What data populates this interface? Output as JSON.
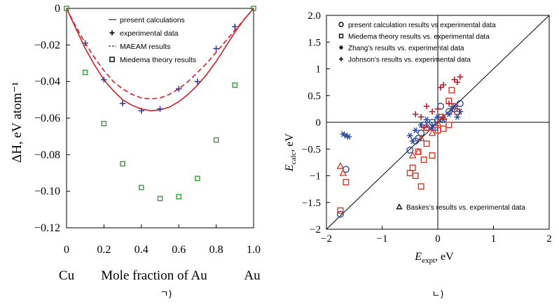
{
  "chart_data": [
    {
      "type": "line",
      "panel_label": "ㄱ)",
      "ylabel": "ΔH, eV atom⁻¹",
      "xlabel_left": "Cu",
      "xlabel_mid": "Mole fraction of Au",
      "xlabel_right": "Au",
      "xlim": [
        0,
        1.0
      ],
      "ylim": [
        -0.12,
        0
      ],
      "xticks": [
        "0",
        "0.2",
        "0.4",
        "0.6",
        "0.8",
        "1.0"
      ],
      "yticks": [
        "0",
        "−0.02",
        "−0.04",
        "−0.06",
        "−0.08",
        "−0.10",
        "−0.12"
      ],
      "legend": [
        "present calculations",
        "experimental data",
        "MAEAM results",
        "Miedema theory results"
      ],
      "series": [
        {
          "name": "present calculations",
          "style": "solid",
          "color": "#d01e28",
          "x": [
            0,
            0.05,
            0.1,
            0.15,
            0.2,
            0.25,
            0.3,
            0.35,
            0.4,
            0.45,
            0.5,
            0.55,
            0.6,
            0.65,
            0.7,
            0.75,
            0.8,
            0.85,
            0.9,
            0.95,
            1.0
          ],
          "y": [
            0,
            -0.011,
            -0.022,
            -0.031,
            -0.039,
            -0.045,
            -0.05,
            -0.053,
            -0.055,
            -0.056,
            -0.0555,
            -0.054,
            -0.051,
            -0.047,
            -0.042,
            -0.036,
            -0.029,
            -0.021,
            -0.013,
            -0.006,
            0
          ]
        },
        {
          "name": "MAEAM results",
          "style": "dashed",
          "color": "#d01e28",
          "x": [
            0,
            0.05,
            0.1,
            0.15,
            0.2,
            0.25,
            0.3,
            0.35,
            0.4,
            0.45,
            0.5,
            0.55,
            0.6,
            0.65,
            0.7,
            0.75,
            0.8,
            0.85,
            0.9,
            0.95,
            1.0
          ],
          "y": [
            0,
            -0.01,
            -0.019,
            -0.027,
            -0.034,
            -0.04,
            -0.044,
            -0.047,
            -0.049,
            -0.0495,
            -0.049,
            -0.047,
            -0.044,
            -0.04,
            -0.035,
            -0.03,
            -0.024,
            -0.018,
            -0.012,
            -0.006,
            0
          ]
        },
        {
          "name": "experimental data",
          "marker": "+",
          "color": "#3a3f98",
          "x": [
            0.1,
            0.2,
            0.3,
            0.4,
            0.5,
            0.6,
            0.7,
            0.8,
            0.9
          ],
          "y": [
            -0.019,
            -0.039,
            -0.052,
            -0.056,
            -0.055,
            -0.044,
            -0.04,
            -0.022,
            -0.01
          ]
        },
        {
          "name": "Miedema theory results",
          "marker": "square",
          "color": "#3a9a3a",
          "x": [
            0,
            0.1,
            0.2,
            0.3,
            0.4,
            0.5,
            0.6,
            0.7,
            0.8,
            0.9,
            1.0
          ],
          "y": [
            0,
            -0.035,
            -0.063,
            -0.085,
            -0.098,
            -0.104,
            -0.103,
            -0.093,
            -0.072,
            -0.042,
            0
          ]
        }
      ]
    },
    {
      "type": "scatter",
      "panel_label": "ㄴ)",
      "xlabel": "E",
      "xlabel_sub": "expt",
      "xlabel_unit": ", eV",
      "ylabel": "E",
      "ylabel_sub": "calc",
      "ylabel_unit": ", eV",
      "xlim": [
        -2,
        2
      ],
      "ylim": [
        -2,
        2
      ],
      "xticks": [
        "−2",
        "−1",
        "0",
        "1",
        "2"
      ],
      "yticks": [
        "2.0",
        "1.5",
        "1",
        "0.5",
        "0",
        "−0.5",
        "−1",
        "−1.5",
        "−2"
      ],
      "legend": [
        "present calculation results vs experimental data",
        "Miedema theory results vs. experimental data",
        "Zhang’s results vs. experimental data",
        "Johnson’s results vs. experimental data"
      ],
      "legend_bottom": "Baskes’s results vs. experimental data",
      "series": [
        {
          "name": "present calculation results",
          "marker": "circle",
          "color": "#2b4a9c",
          "x": [
            -1.75,
            -1.65,
            -0.5,
            -0.4,
            -0.3,
            -0.2,
            -0.15,
            -0.1,
            -0.05,
            0,
            0.05,
            0.1,
            0.2,
            0.3,
            0.4,
            -0.25,
            -0.35
          ],
          "y": [
            -1.72,
            -0.88,
            -0.52,
            -0.35,
            -0.2,
            -0.1,
            -0.05,
            0.0,
            -0.1,
            0.05,
            0.3,
            0.05,
            0.2,
            0.25,
            0.35,
            -0.05,
            -0.3
          ]
        },
        {
          "name": "Miedema theory results",
          "marker": "square",
          "color": "#d8341e",
          "x": [
            -1.75,
            -1.65,
            -0.5,
            -0.45,
            -0.4,
            -0.35,
            -0.3,
            -0.25,
            -0.2,
            -0.1,
            0,
            0.05,
            0.1,
            0.2,
            0.25,
            0.3,
            0.35,
            0.2
          ],
          "y": [
            -1.65,
            -1.12,
            -0.95,
            -0.85,
            -1.0,
            -0.55,
            -1.2,
            -0.7,
            -0.4,
            -0.62,
            -0.15,
            0.1,
            -0.12,
            0.4,
            0.6,
            0.3,
            0.2,
            -0.05
          ]
        },
        {
          "name": "Zhang's results",
          "marker": "asterisk",
          "color": "#2b4a9c",
          "x": [
            -1.7,
            -1.65,
            -1.6,
            -0.5,
            -0.4,
            -0.3,
            -0.2,
            -0.1,
            0,
            0.1,
            0.2,
            0.3,
            0.4,
            -0.45,
            0.25,
            0.35
          ],
          "y": [
            -0.22,
            -0.25,
            -0.27,
            -0.25,
            -0.15,
            -0.05,
            0.05,
            -0.1,
            0.1,
            0.05,
            0.15,
            0.3,
            0.2,
            -0.35,
            0.25,
            0.1
          ]
        },
        {
          "name": "Johnson's results",
          "marker": "+",
          "color": "#c0182a",
          "x": [
            -0.4,
            -0.3,
            -0.2,
            -0.1,
            0,
            0.1,
            0.2,
            0.3,
            0.35,
            0.4,
            -0.25,
            0.05
          ],
          "y": [
            0.15,
            0.1,
            0.3,
            0.2,
            0.25,
            0.7,
            0.35,
            0.8,
            0.75,
            0.85,
            -0.1,
            0.65
          ]
        },
        {
          "name": "Baskes's results",
          "marker": "triangle",
          "color": "#d8341e",
          "x": [
            -1.75,
            -1.7,
            -0.45,
            -0.35,
            -0.3,
            -0.2,
            -0.1,
            0.0,
            0.1
          ],
          "y": [
            -0.82,
            -0.95,
            -0.62,
            -0.55,
            -0.3,
            -0.1,
            -0.2,
            -0.02,
            0.1
          ]
        }
      ]
    }
  ]
}
